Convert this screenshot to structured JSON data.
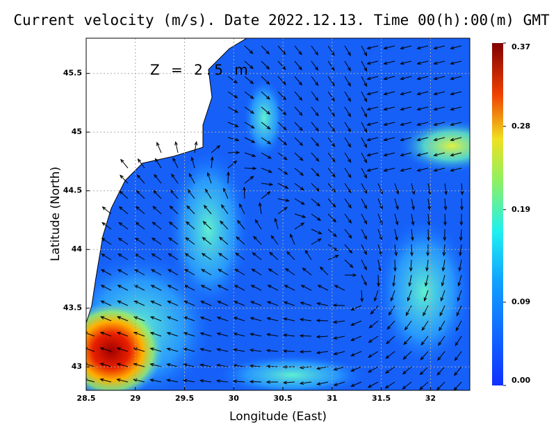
{
  "chart_data": {
    "type": "vector-field",
    "title": "Current velocity (m/s). Date 2022.12.13. Time 00(h):00(m) GMT",
    "annotation": "Z = 2.5 m",
    "x_label": "Longitude (East)",
    "y_label": "Latitude (North)",
    "xlim": [
      28.5,
      32.4
    ],
    "xticks": [
      28.5,
      29,
      29.5,
      30,
      30.5,
      31,
      31.5,
      32
    ],
    "ylim": [
      42.8,
      45.8
    ],
    "yticks": [
      43,
      43.5,
      44,
      44.5,
      45,
      45.5
    ],
    "grid": true,
    "colorbar": {
      "lim": [
        0,
        0.37
      ],
      "ticks": [
        {
          "value": 0,
          "label": "0.00"
        },
        0.09,
        0.19,
        0.28,
        0.37
      ]
    }
  }
}
